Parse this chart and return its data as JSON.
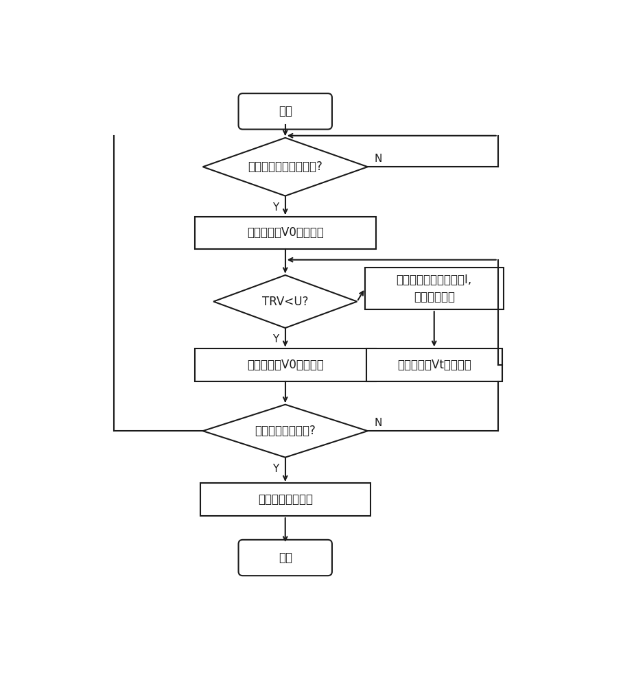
{
  "bg_color": "#ffffff",
  "line_color": "#1a1a1a",
  "text_color": "#1a1a1a",
  "font_size": 12,
  "font_size_label": 11,
  "start_text": "开始",
  "end_text": "结束",
  "d1_text": "是否满足选相开断条件?",
  "box1_text": "驱动模块以V0进行开断",
  "d2_text": "TRV<U?",
  "rbox_top_text": "调整永磁机构线圈电流I,\n加快开断速度",
  "box2_text": "驱动模块以V0进行开断",
  "rbox_bot_text": "驱动模块以Vt进行开断",
  "d3_text": "是否完成选相开断?",
  "box3_text": "退出选相开断程序",
  "label_Y": "Y",
  "label_N": "N"
}
